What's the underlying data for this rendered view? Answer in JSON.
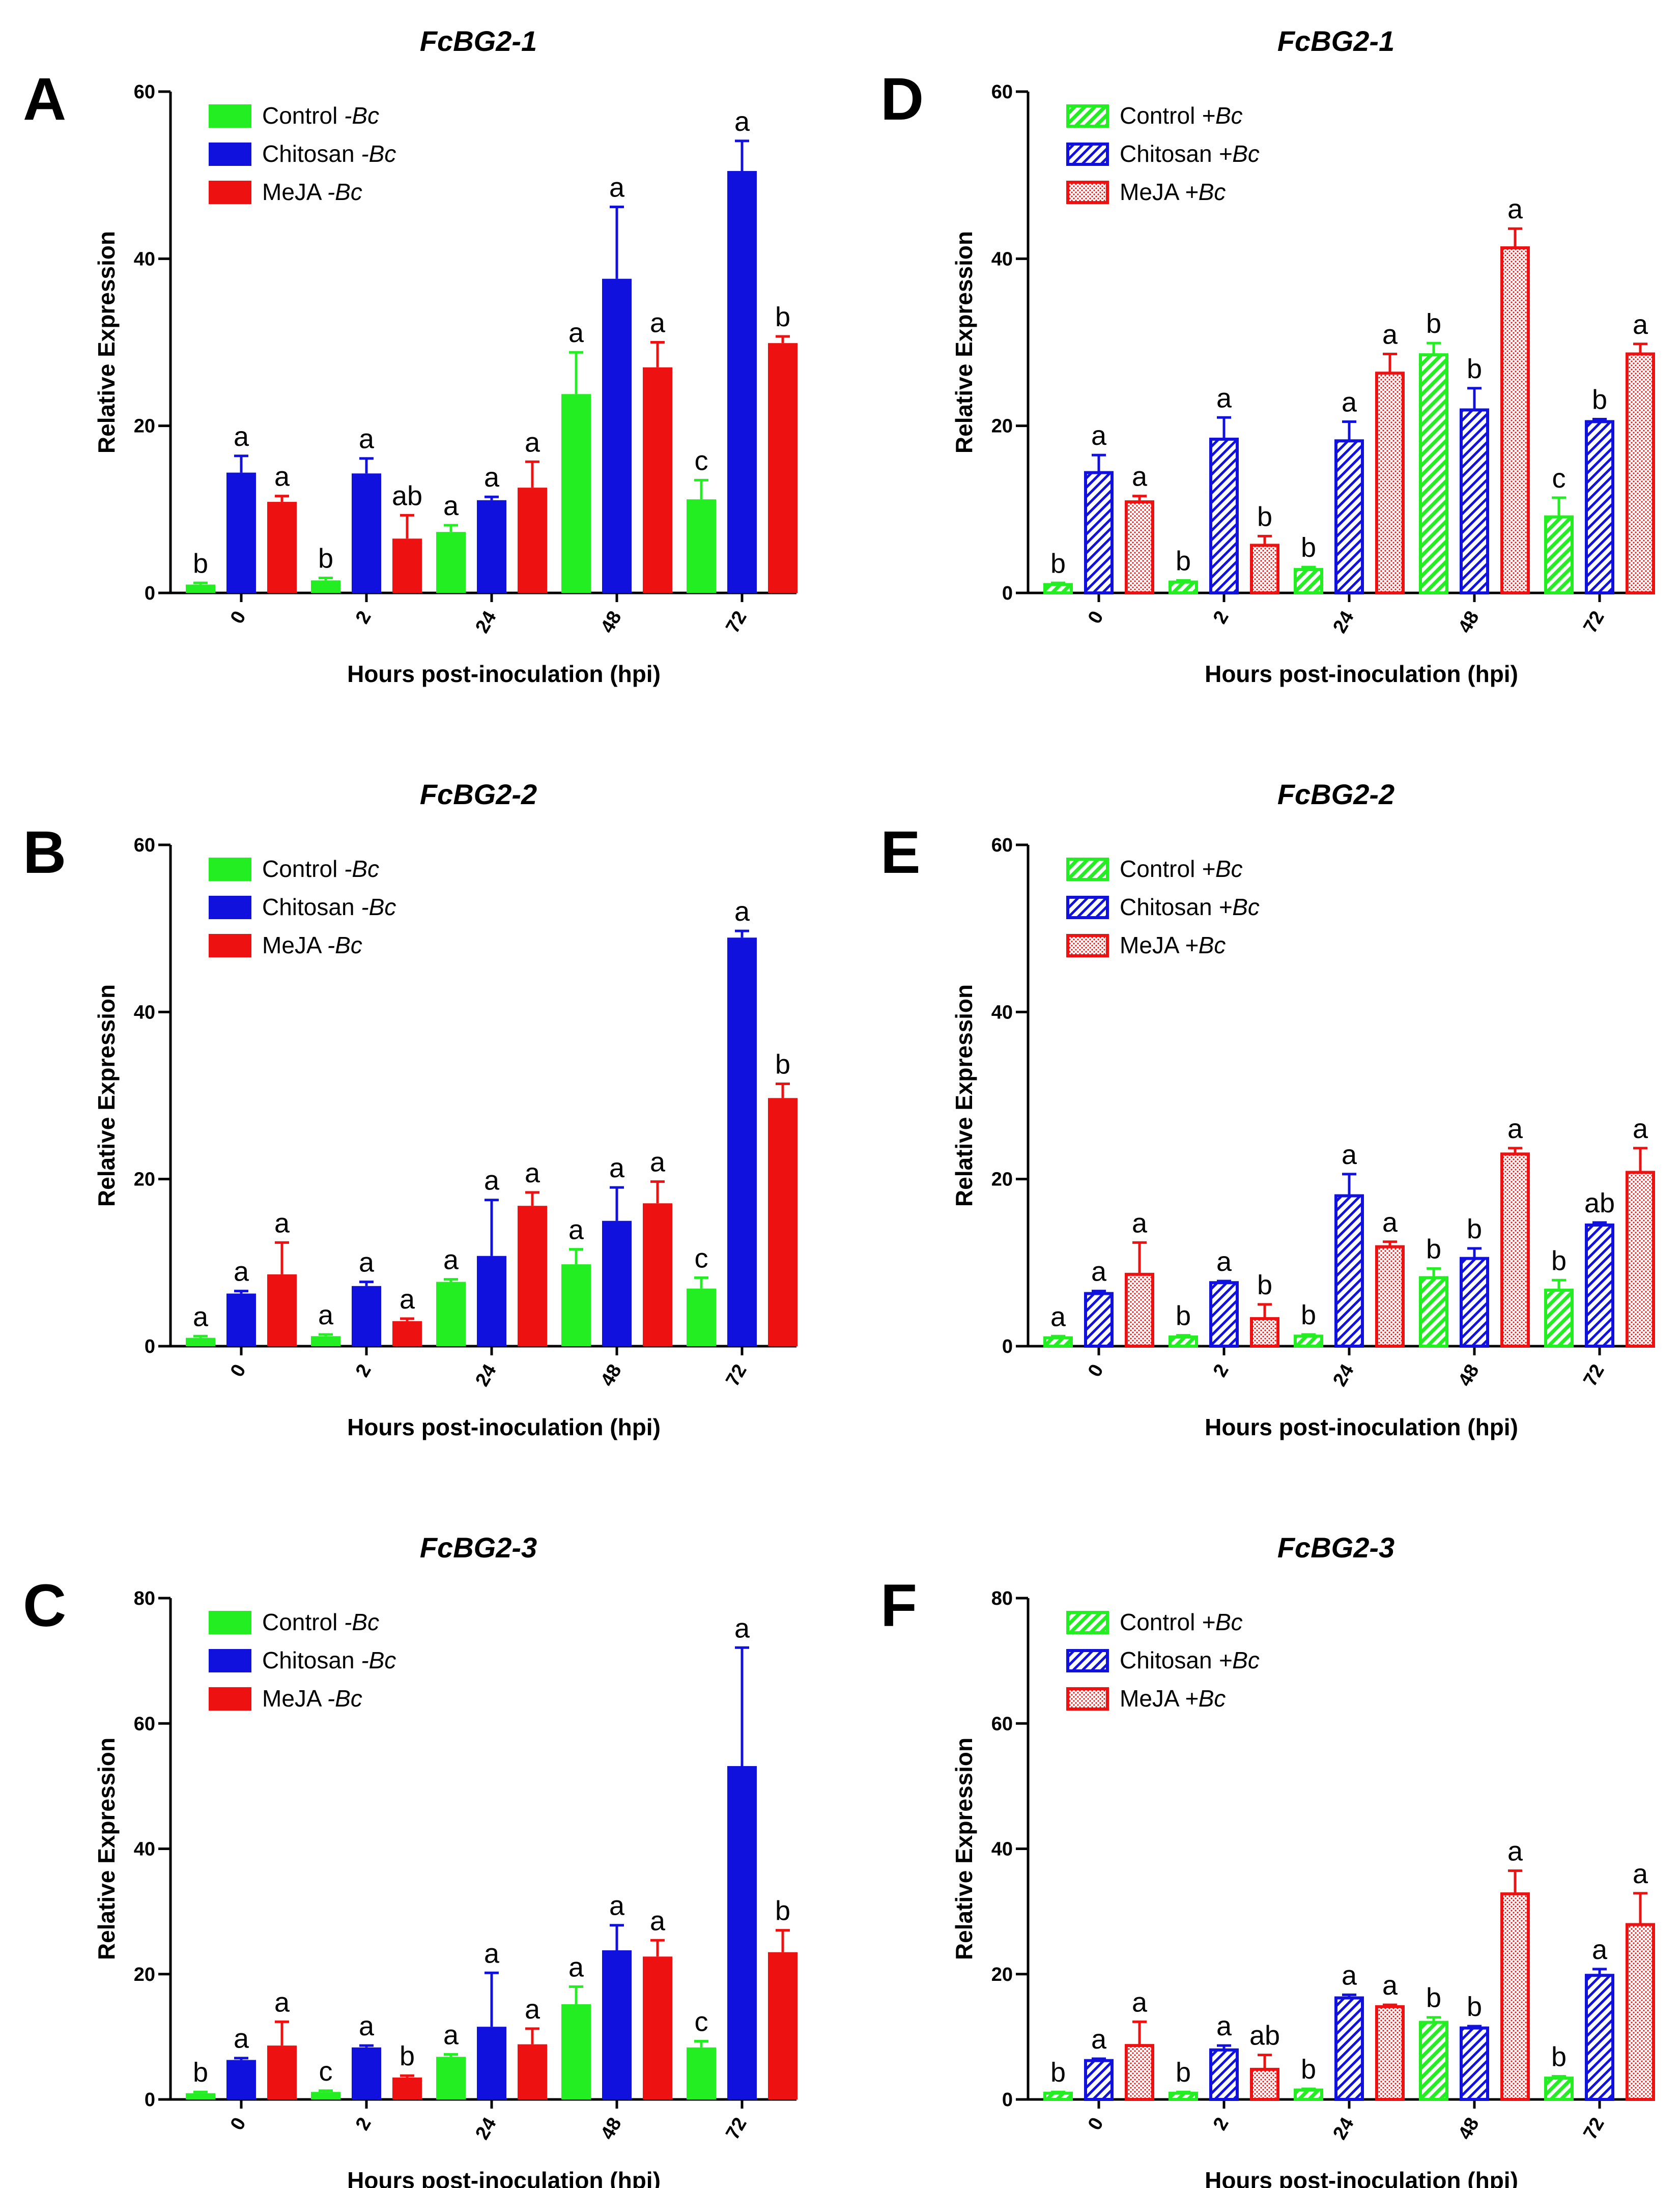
{
  "colors": {
    "control": "#22ee22",
    "chitosan": "#1111dd",
    "meja": "#ee1111"
  },
  "chart_data": [
    {
      "panel": "A",
      "type": "bar",
      "title": "FcBG2-1",
      "pattern": "solid",
      "xlabel": "Hours post-inoculation (hpi)",
      "ylabel": "Relative Expression",
      "ylim": [
        0,
        60
      ],
      "yticks": [
        0,
        20,
        40,
        60
      ],
      "categories": [
        "0",
        "2",
        "24",
        "48",
        "72"
      ],
      "legend_location": "top-left",
      "series": [
        {
          "name": "Control",
          "suffix": "-Bc",
          "values": [
            1.0,
            1.5,
            7.3,
            23.8,
            11.2
          ],
          "errors": [
            0.2,
            0.3,
            0.8,
            5.0,
            2.3
          ],
          "letters": [
            "b",
            "b",
            "a",
            "a",
            "c"
          ]
        },
        {
          "name": "Chitosan",
          "suffix": "-Bc",
          "values": [
            14.4,
            14.3,
            11.1,
            37.6,
            50.5
          ],
          "errors": [
            2.0,
            1.8,
            0.4,
            8.6,
            3.6
          ],
          "letters": [
            "a",
            "a",
            "a",
            "a",
            "a"
          ]
        },
        {
          "name": "MeJA",
          "suffix": "-Bc",
          "values": [
            10.9,
            6.5,
            12.6,
            27.0,
            29.9
          ],
          "errors": [
            0.7,
            2.8,
            3.1,
            3.0,
            0.8
          ],
          "letters": [
            "a",
            "ab",
            "a",
            "a",
            "b"
          ]
        }
      ]
    },
    {
      "panel": "B",
      "type": "bar",
      "title": "FcBG2-2",
      "pattern": "solid",
      "xlabel": "Hours post-inoculation (hpi)",
      "ylabel": "Relative Expression",
      "ylim": [
        0,
        60
      ],
      "yticks": [
        0,
        20,
        40,
        60
      ],
      "categories": [
        "0",
        "2",
        "24",
        "48",
        "72"
      ],
      "legend_location": "top-left",
      "series": [
        {
          "name": "Control",
          "suffix": "-Bc",
          "values": [
            1.0,
            1.2,
            7.7,
            9.8,
            6.9
          ],
          "errors": [
            0.2,
            0.2,
            0.3,
            1.8,
            1.3
          ],
          "letters": [
            "a",
            "a",
            "a",
            "a",
            "c"
          ]
        },
        {
          "name": "Chitosan",
          "suffix": "-Bc",
          "values": [
            6.3,
            7.2,
            10.8,
            15.0,
            48.9
          ],
          "errors": [
            0.3,
            0.5,
            6.7,
            4.0,
            0.8
          ],
          "letters": [
            "a",
            "a",
            "a",
            "a",
            "a"
          ]
        },
        {
          "name": "MeJA",
          "suffix": "-Bc",
          "values": [
            8.6,
            3.0,
            16.8,
            17.1,
            29.7
          ],
          "errors": [
            3.8,
            0.3,
            1.6,
            2.6,
            1.7
          ],
          "letters": [
            "a",
            "a",
            "a",
            "a",
            "b"
          ]
        }
      ]
    },
    {
      "panel": "C",
      "type": "bar",
      "title": "FcBG2-3",
      "pattern": "solid",
      "xlabel": "Hours post-inoculation (hpi)",
      "ylabel": "Relative Expression",
      "ylim": [
        0,
        80
      ],
      "yticks": [
        0,
        20,
        40,
        60,
        80
      ],
      "categories": [
        "0",
        "2",
        "24",
        "48",
        "72"
      ],
      "legend_location": "top-left",
      "series": [
        {
          "name": "Control",
          "suffix": "-Bc",
          "values": [
            1.0,
            1.2,
            6.8,
            15.2,
            8.3
          ],
          "errors": [
            0.2,
            0.2,
            0.4,
            2.8,
            1.0
          ],
          "letters": [
            "b",
            "c",
            "a",
            "a",
            "c"
          ]
        },
        {
          "name": "Chitosan",
          "suffix": "-Bc",
          "values": [
            6.3,
            8.3,
            11.6,
            23.8,
            53.2
          ],
          "errors": [
            0.3,
            0.3,
            8.6,
            4.0,
            18.9
          ],
          "letters": [
            "a",
            "a",
            "a",
            "a",
            "a"
          ]
        },
        {
          "name": "MeJA",
          "suffix": "-Bc",
          "values": [
            8.6,
            3.5,
            8.8,
            22.8,
            23.5
          ],
          "errors": [
            3.8,
            0.3,
            2.5,
            2.6,
            3.5
          ],
          "letters": [
            "a",
            "b",
            "a",
            "a",
            "b"
          ]
        }
      ]
    },
    {
      "panel": "D",
      "type": "bar",
      "title": "FcBG2-1",
      "pattern": "patterned",
      "xlabel": "Hours post-inoculation (hpi)",
      "ylabel": "Relative Expression",
      "ylim": [
        0,
        60
      ],
      "yticks": [
        0,
        20,
        40,
        60
      ],
      "categories": [
        "0",
        "2",
        "24",
        "48",
        "72"
      ],
      "legend_location": "top-left",
      "series": [
        {
          "name": "Control",
          "suffix": "+Bc",
          "values": [
            1.0,
            1.3,
            2.8,
            28.5,
            9.1
          ],
          "errors": [
            0.2,
            0.2,
            0.3,
            1.4,
            2.3
          ],
          "letters": [
            "b",
            "b",
            "b",
            "b",
            "c"
          ]
        },
        {
          "name": "Chitosan",
          "suffix": "+Bc",
          "values": [
            14.4,
            18.4,
            18.2,
            21.9,
            20.5
          ],
          "errors": [
            2.1,
            2.6,
            2.3,
            2.6,
            0.3
          ],
          "letters": [
            "a",
            "a",
            "a",
            "b",
            "b"
          ]
        },
        {
          "name": "MeJA",
          "suffix": "+Bc",
          "values": [
            10.9,
            5.7,
            26.3,
            41.3,
            28.6
          ],
          "errors": [
            0.7,
            1.1,
            2.3,
            2.3,
            1.2
          ],
          "letters": [
            "a",
            "b",
            "a",
            "a",
            "a"
          ]
        }
      ]
    },
    {
      "panel": "E",
      "type": "bar",
      "title": "FcBG2-2",
      "pattern": "patterned",
      "xlabel": "Hours post-inoculation (hpi)",
      "ylabel": "Relative Expression",
      "ylim": [
        0,
        60
      ],
      "yticks": [
        0,
        20,
        40,
        60
      ],
      "categories": [
        "0",
        "2",
        "24",
        "48",
        "72"
      ],
      "legend_location": "top-left",
      "series": [
        {
          "name": "Control",
          "suffix": "+Bc",
          "values": [
            1.0,
            1.1,
            1.2,
            8.2,
            6.7
          ],
          "errors": [
            0.2,
            0.2,
            0.2,
            1.1,
            1.2
          ],
          "letters": [
            "a",
            "b",
            "b",
            "b",
            "b"
          ]
        },
        {
          "name": "Chitosan",
          "suffix": "+Bc",
          "values": [
            6.3,
            7.6,
            18.0,
            10.5,
            14.5
          ],
          "errors": [
            0.3,
            0.2,
            2.6,
            1.2,
            0.3
          ],
          "letters": [
            "a",
            "a",
            "a",
            "b",
            "ab"
          ]
        },
        {
          "name": "MeJA",
          "suffix": "+Bc",
          "values": [
            8.6,
            3.3,
            11.9,
            23.0,
            20.8
          ],
          "errors": [
            3.8,
            1.7,
            0.6,
            0.7,
            2.9
          ],
          "letters": [
            "a",
            "b",
            "a",
            "a",
            "a"
          ]
        }
      ]
    },
    {
      "panel": "F",
      "type": "bar",
      "title": "FcBG2-3",
      "pattern": "patterned",
      "xlabel": "Hours post-inoculation (hpi)",
      "ylabel": "Relative Expression",
      "ylim": [
        0,
        80
      ],
      "yticks": [
        0,
        20,
        40,
        60,
        80
      ],
      "categories": [
        "0",
        "2",
        "24",
        "48",
        "72"
      ],
      "legend_location": "top-left",
      "series": [
        {
          "name": "Control",
          "suffix": "+Bc",
          "values": [
            1.0,
            1.0,
            1.5,
            12.3,
            3.4
          ],
          "errors": [
            0.2,
            0.2,
            0.2,
            0.8,
            0.3
          ],
          "letters": [
            "b",
            "b",
            "b",
            "b",
            "b"
          ]
        },
        {
          "name": "Chitosan",
          "suffix": "+Bc",
          "values": [
            6.2,
            7.9,
            16.2,
            11.4,
            19.8
          ],
          "errors": [
            0.3,
            0.7,
            0.5,
            0.3,
            1.0
          ],
          "letters": [
            "a",
            "a",
            "a",
            "b",
            "a"
          ]
        },
        {
          "name": "MeJA",
          "suffix": "+Bc",
          "values": [
            8.6,
            4.8,
            14.8,
            32.8,
            27.9
          ],
          "errors": [
            3.8,
            2.3,
            0.3,
            3.7,
            5.0
          ],
          "letters": [
            "a",
            "ab",
            "a",
            "a",
            "a"
          ]
        }
      ]
    }
  ]
}
